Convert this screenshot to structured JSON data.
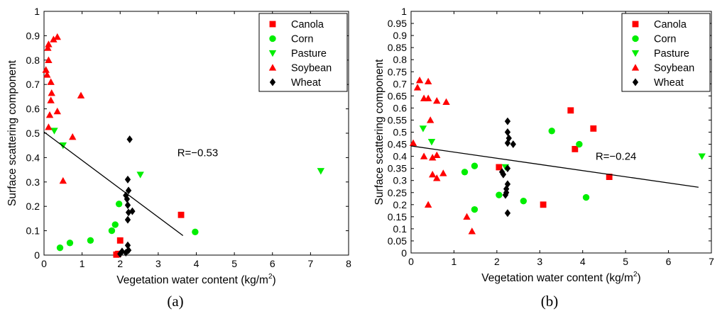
{
  "chart_data": [
    {
      "type": "scatter",
      "panel_label": "(a)",
      "xlabel": "Vegetation water content (kg/m",
      "xlabel_sup": "2",
      "xlabel_suffix": ")",
      "ylabel": "Surface scattering component",
      "xlim": [
        0,
        8
      ],
      "ylim": [
        0,
        1
      ],
      "xticks": [
        0,
        1,
        2,
        3,
        4,
        5,
        6,
        7,
        8
      ],
      "yticks": [
        0,
        0.1,
        0.2,
        0.3,
        0.4,
        0.5,
        0.6,
        0.7,
        0.8,
        0.9,
        1
      ],
      "ytick_labels": [
        "0",
        "0.1",
        "0.2",
        "0.3",
        "0.4",
        "0.5",
        "0.6",
        "0.7",
        "0.8",
        "0.9",
        "1"
      ],
      "grid": false,
      "legend_position": "top-right",
      "annotation": {
        "text": "R=−0.53",
        "x": 3.5,
        "y": 0.42
      },
      "fit_line": {
        "x": [
          0,
          3.65
        ],
        "y": [
          0.505,
          0.08
        ]
      },
      "series": [
        {
          "name": "Canola",
          "marker": "square",
          "color": "#ff0000",
          "points": [
            [
              3.6,
              0.165
            ],
            [
              2.0,
              0.06
            ],
            [
              1.9,
              0.002
            ],
            [
              1.95,
              0.005
            ]
          ]
        },
        {
          "name": "Corn",
          "marker": "circle",
          "color": "#00ee00",
          "points": [
            [
              0.42,
              0.03
            ],
            [
              0.68,
              0.05
            ],
            [
              1.22,
              0.06
            ],
            [
              1.78,
              0.1
            ],
            [
              1.87,
              0.125
            ],
            [
              1.97,
              0.21
            ],
            [
              3.97,
              0.095
            ]
          ]
        },
        {
          "name": "Pasture",
          "marker": "triangle-down",
          "color": "#00ee00",
          "points": [
            [
              0.27,
              0.51
            ],
            [
              0.5,
              0.45
            ],
            [
              2.53,
              0.33
            ],
            [
              7.27,
              0.345
            ]
          ]
        },
        {
          "name": "Soybean",
          "marker": "triangle-up",
          "color": "#ff0000",
          "points": [
            [
              0.05,
              0.76
            ],
            [
              0.08,
              0.74
            ],
            [
              0.1,
              0.85
            ],
            [
              0.12,
              0.865
            ],
            [
              0.12,
              0.8
            ],
            [
              0.18,
              0.71
            ],
            [
              0.2,
              0.665
            ],
            [
              0.18,
              0.635
            ],
            [
              0.25,
              0.885
            ],
            [
              0.35,
              0.895
            ],
            [
              0.35,
              0.59
            ],
            [
              0.15,
              0.575
            ],
            [
              0.12,
              0.525
            ],
            [
              0.75,
              0.485
            ],
            [
              0.97,
              0.655
            ],
            [
              0.5,
              0.305
            ]
          ]
        },
        {
          "name": "Wheat",
          "marker": "diamond",
          "color": "#000000",
          "points": [
            [
              2.25,
              0.475
            ],
            [
              2.2,
              0.31
            ],
            [
              2.22,
              0.265
            ],
            [
              2.15,
              0.245
            ],
            [
              2.18,
              0.23
            ],
            [
              2.2,
              0.205
            ],
            [
              2.32,
              0.18
            ],
            [
              2.22,
              0.175
            ],
            [
              2.2,
              0.145
            ],
            [
              2.2,
              0.04
            ],
            [
              2.22,
              0.02
            ],
            [
              2.05,
              0.015
            ],
            [
              2.15,
              0.01
            ],
            [
              2.0,
              0.005
            ]
          ]
        }
      ]
    },
    {
      "type": "scatter",
      "panel_label": "(b)",
      "xlabel": "Vegetation water content (kg/m",
      "xlabel_sup": "2",
      "xlabel_suffix": ")",
      "ylabel": "Surface scattering component",
      "xlim": [
        0,
        7
      ],
      "ylim": [
        0,
        1
      ],
      "xticks": [
        0,
        1,
        2,
        3,
        4,
        5,
        6,
        7
      ],
      "yticks": [
        0,
        0.05,
        0.1,
        0.15,
        0.2,
        0.25,
        0.3,
        0.35,
        0.4,
        0.45,
        0.5,
        0.55,
        0.6,
        0.65,
        0.7,
        0.75,
        0.8,
        0.85,
        0.9,
        0.95,
        1
      ],
      "ytick_labels": [
        "0",
        "0.05",
        "0.1",
        "0.15",
        "0.2",
        "0.25",
        "0.3",
        "0.35",
        "0.4",
        "0.45",
        "0.5",
        "0.55",
        "0.6",
        "0.65",
        "0.7",
        "0.75",
        "0.8",
        "0.85",
        "0.9",
        "0.95",
        "1"
      ],
      "grid": false,
      "legend_position": "top-right",
      "annotation": {
        "text": "R=−0.24",
        "x": 4.3,
        "y": 0.4
      },
      "fit_line": {
        "x": [
          0,
          6.7
        ],
        "y": [
          0.443,
          0.272
        ]
      },
      "series": [
        {
          "name": "Canola",
          "marker": "square",
          "color": "#ff0000",
          "points": [
            [
              3.72,
              0.59
            ],
            [
              4.25,
              0.515
            ],
            [
              3.82,
              0.43
            ],
            [
              2.05,
              0.355
            ],
            [
              4.62,
              0.315
            ],
            [
              3.08,
              0.2
            ]
          ]
        },
        {
          "name": "Corn",
          "marker": "circle",
          "color": "#00ee00",
          "points": [
            [
              3.28,
              0.505
            ],
            [
              3.92,
              0.45
            ],
            [
              1.48,
              0.36
            ],
            [
              1.25,
              0.335
            ],
            [
              2.05,
              0.24
            ],
            [
              2.62,
              0.215
            ],
            [
              4.08,
              0.23
            ],
            [
              1.48,
              0.18
            ]
          ]
        },
        {
          "name": "Pasture",
          "marker": "triangle-down",
          "color": "#00ee00",
          "points": [
            [
              0.28,
              0.515
            ],
            [
              0.48,
              0.46
            ],
            [
              2.2,
              0.355
            ],
            [
              6.78,
              0.4
            ]
          ]
        },
        {
          "name": "Soybean",
          "marker": "triangle-up",
          "color": "#ff0000",
          "points": [
            [
              0.2,
              0.715
            ],
            [
              0.4,
              0.71
            ],
            [
              0.15,
              0.685
            ],
            [
              0.3,
              0.64
            ],
            [
              0.4,
              0.64
            ],
            [
              0.6,
              0.63
            ],
            [
              0.82,
              0.625
            ],
            [
              0.45,
              0.55
            ],
            [
              0.05,
              0.455
            ],
            [
              0.3,
              0.4
            ],
            [
              0.5,
              0.395
            ],
            [
              0.6,
              0.405
            ],
            [
              0.75,
              0.33
            ],
            [
              0.5,
              0.325
            ],
            [
              0.6,
              0.31
            ],
            [
              0.4,
              0.2
            ],
            [
              1.3,
              0.15
            ],
            [
              1.42,
              0.09
            ]
          ]
        },
        {
          "name": "Wheat",
          "marker": "diamond",
          "color": "#000000",
          "points": [
            [
              2.25,
              0.545
            ],
            [
              2.25,
              0.5
            ],
            [
              2.28,
              0.475
            ],
            [
              2.25,
              0.455
            ],
            [
              2.38,
              0.45
            ],
            [
              2.25,
              0.35
            ],
            [
              2.12,
              0.335
            ],
            [
              2.15,
              0.325
            ],
            [
              2.25,
              0.285
            ],
            [
              2.22,
              0.265
            ],
            [
              2.22,
              0.25
            ],
            [
              2.2,
              0.24
            ],
            [
              2.25,
              0.165
            ]
          ]
        }
      ]
    }
  ]
}
